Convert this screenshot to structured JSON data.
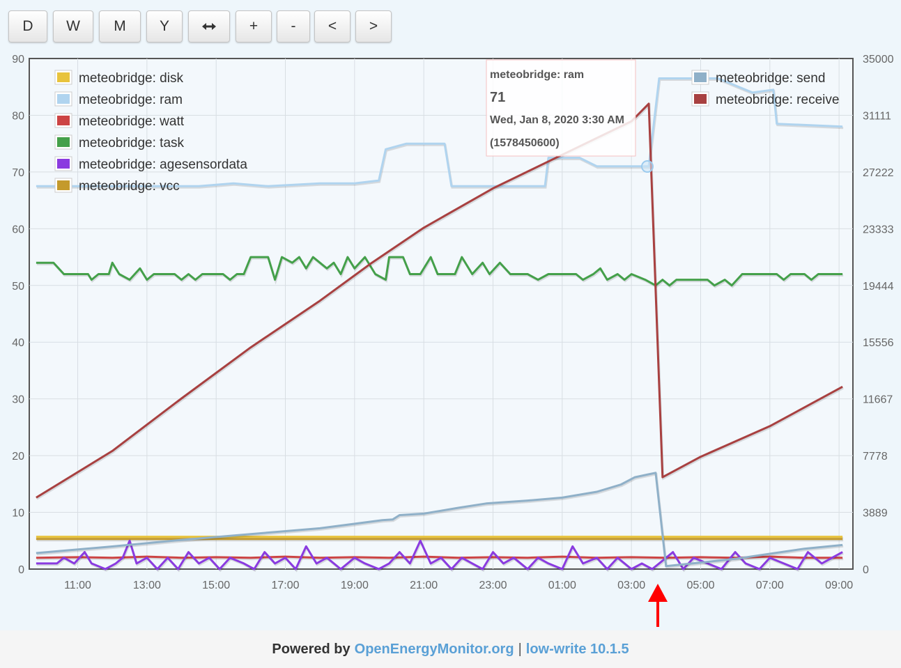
{
  "toolbar": {
    "buttons": [
      {
        "id": "day",
        "label": "D",
        "icon": ""
      },
      {
        "id": "week",
        "label": "W",
        "icon": ""
      },
      {
        "id": "month",
        "label": "M",
        "icon": ""
      },
      {
        "id": "year",
        "label": "Y",
        "icon": ""
      },
      {
        "id": "fit",
        "label": "",
        "icon": "horizontal-arrows-icon"
      },
      {
        "id": "zoom-in",
        "label": "+",
        "icon": ""
      },
      {
        "id": "zoom-out",
        "label": "-",
        "icon": ""
      },
      {
        "id": "pan-left",
        "label": "<",
        "icon": ""
      },
      {
        "id": "pan-right",
        "label": ">",
        "icon": ""
      }
    ]
  },
  "tooltip": {
    "series": "meteobridge: ram",
    "value": "71",
    "time": "Wed, Jan 8, 2020 3:30 AM",
    "timestamp": "(1578450600)"
  },
  "footer": {
    "powered_by": "Powered by",
    "link1": "OpenEnergyMonitor.org",
    "separator": "|",
    "link2": "low-write 10.1.5"
  },
  "annotation": {
    "type": "arrow",
    "color": "#ff0000"
  },
  "chart_data": {
    "type": "line",
    "x_tick_labels": [
      "11:00",
      "13:00",
      "15:00",
      "17:00",
      "19:00",
      "21:00",
      "23:00",
      "01:00",
      "03:00",
      "05:00",
      "07:00",
      "09:00"
    ],
    "x_tick_hours": [
      11,
      13,
      15,
      17,
      19,
      21,
      23,
      25,
      27,
      29,
      31,
      33
    ],
    "x_range_hours": [
      9.6,
      33.4
    ],
    "y_left": {
      "ticks": [
        "0",
        "10",
        "20",
        "30",
        "40",
        "50",
        "60",
        "70",
        "80",
        "90"
      ],
      "range": [
        0,
        90
      ]
    },
    "y_right": {
      "ticks": [
        "0",
        "3889",
        "7778",
        "11667",
        "15556",
        "19444",
        "23333",
        "27222",
        "31111",
        "35000"
      ],
      "range": [
        0,
        35000
      ]
    },
    "grid": true,
    "legend_left_placement": "top-left",
    "legend_right_placement": "top-right",
    "series": [
      {
        "name": "meteobridge: disk",
        "color": "#e8c33c",
        "axis": "left",
        "points": [
          [
            9.8,
            5.7
          ],
          [
            33.1,
            5.7
          ]
        ]
      },
      {
        "name": "meteobridge: ram",
        "color": "#b0d4ef",
        "axis": "left",
        "points": [
          [
            9.8,
            67.5
          ],
          [
            12.5,
            67.5
          ],
          [
            13.0,
            67.5
          ],
          [
            14.5,
            67.5
          ],
          [
            15.5,
            68
          ],
          [
            16.5,
            67.5
          ],
          [
            18.0,
            68
          ],
          [
            19.0,
            68
          ],
          [
            19.7,
            68.5
          ],
          [
            19.9,
            74
          ],
          [
            20.5,
            75
          ],
          [
            21.6,
            75
          ],
          [
            21.8,
            67.5
          ],
          [
            24.5,
            67.5
          ],
          [
            24.6,
            72.5
          ],
          [
            25.5,
            72.5
          ],
          [
            26.0,
            71
          ],
          [
            27.4,
            71
          ],
          [
            27.5,
            71
          ],
          [
            27.8,
            86.5
          ],
          [
            29.5,
            86.5
          ],
          [
            30.5,
            84
          ],
          [
            31.1,
            84.5
          ],
          [
            31.2,
            78.5
          ],
          [
            33.1,
            78
          ]
        ]
      },
      {
        "name": "meteobridge: watt",
        "color": "#cc4444",
        "axis": "left",
        "points": [
          [
            9.8,
            2.0
          ],
          [
            11,
            2.1
          ],
          [
            12,
            2.0
          ],
          [
            13,
            2.2
          ],
          [
            14,
            2.0
          ],
          [
            15,
            2.1
          ],
          [
            16,
            2.0
          ],
          [
            17,
            2.2
          ],
          [
            18,
            2.0
          ],
          [
            19,
            2.1
          ],
          [
            20,
            2.0
          ],
          [
            21,
            2.2
          ],
          [
            22,
            2.0
          ],
          [
            23,
            2.1
          ],
          [
            24,
            2.0
          ],
          [
            25,
            2.2
          ],
          [
            26,
            2.0
          ],
          [
            27,
            2.1
          ],
          [
            28,
            2.0
          ],
          [
            29,
            2.1
          ],
          [
            30,
            2.0
          ],
          [
            31,
            2.2
          ],
          [
            32,
            2.0
          ],
          [
            33.1,
            2.0
          ]
        ]
      },
      {
        "name": "meteobridge: task",
        "color": "#44a04a",
        "axis": "left",
        "points": [
          [
            9.8,
            54
          ],
          [
            10.3,
            54
          ],
          [
            10.6,
            52
          ],
          [
            11.0,
            52
          ],
          [
            11.3,
            52
          ],
          [
            11.4,
            51
          ],
          [
            11.6,
            52
          ],
          [
            11.9,
            52
          ],
          [
            12.0,
            54
          ],
          [
            12.2,
            52
          ],
          [
            12.5,
            51
          ],
          [
            12.8,
            53
          ],
          [
            13.0,
            51
          ],
          [
            13.2,
            52
          ],
          [
            13.8,
            52
          ],
          [
            14.0,
            51
          ],
          [
            14.2,
            52
          ],
          [
            14.4,
            51
          ],
          [
            14.6,
            52
          ],
          [
            15.2,
            52
          ],
          [
            15.4,
            51
          ],
          [
            15.6,
            52
          ],
          [
            15.8,
            52
          ],
          [
            16.0,
            55
          ],
          [
            16.5,
            55
          ],
          [
            16.7,
            51
          ],
          [
            16.9,
            55
          ],
          [
            17.2,
            54
          ],
          [
            17.4,
            55
          ],
          [
            17.6,
            53
          ],
          [
            17.8,
            55
          ],
          [
            18.2,
            53
          ],
          [
            18.4,
            54
          ],
          [
            18.6,
            52
          ],
          [
            18.8,
            55
          ],
          [
            19.0,
            53
          ],
          [
            19.3,
            55
          ],
          [
            19.6,
            52
          ],
          [
            19.9,
            51
          ],
          [
            20.0,
            55
          ],
          [
            20.4,
            55
          ],
          [
            20.6,
            52
          ],
          [
            20.9,
            52
          ],
          [
            21.2,
            55
          ],
          [
            21.4,
            52
          ],
          [
            21.9,
            52
          ],
          [
            22.1,
            55
          ],
          [
            22.4,
            52
          ],
          [
            22.7,
            54
          ],
          [
            22.9,
            52
          ],
          [
            23.2,
            54
          ],
          [
            23.5,
            52
          ],
          [
            24.0,
            52
          ],
          [
            24.3,
            51
          ],
          [
            24.6,
            52
          ],
          [
            25.4,
            52
          ],
          [
            25.6,
            51
          ],
          [
            25.9,
            52
          ],
          [
            26.1,
            53
          ],
          [
            26.3,
            51
          ],
          [
            26.6,
            52
          ],
          [
            26.8,
            51
          ],
          [
            27.0,
            52
          ],
          [
            27.4,
            51
          ],
          [
            27.7,
            50
          ],
          [
            27.9,
            51
          ],
          [
            28.1,
            50
          ],
          [
            28.3,
            51
          ],
          [
            29.2,
            51
          ],
          [
            29.4,
            50
          ],
          [
            29.7,
            51
          ],
          [
            29.9,
            50
          ],
          [
            30.2,
            52
          ],
          [
            31.2,
            52
          ],
          [
            31.4,
            51
          ],
          [
            31.6,
            52
          ],
          [
            32.0,
            52
          ],
          [
            32.2,
            51
          ],
          [
            32.4,
            52
          ],
          [
            33.1,
            52
          ]
        ]
      },
      {
        "name": "meteobridge: agesensordata",
        "color": "#8a3be0",
        "axis": "left",
        "points": [
          [
            9.8,
            1
          ],
          [
            10.4,
            1
          ],
          [
            10.6,
            2
          ],
          [
            10.9,
            1
          ],
          [
            11.2,
            3
          ],
          [
            11.4,
            1
          ],
          [
            11.8,
            0
          ],
          [
            12.1,
            1
          ],
          [
            12.3,
            2
          ],
          [
            12.5,
            5
          ],
          [
            12.7,
            1
          ],
          [
            13.0,
            2
          ],
          [
            13.3,
            0
          ],
          [
            13.6,
            2
          ],
          [
            13.9,
            0
          ],
          [
            14.2,
            3
          ],
          [
            14.5,
            1
          ],
          [
            14.8,
            2
          ],
          [
            15.1,
            0
          ],
          [
            15.4,
            2
          ],
          [
            15.8,
            1
          ],
          [
            16.1,
            0
          ],
          [
            16.4,
            3
          ],
          [
            16.7,
            1
          ],
          [
            17.0,
            2
          ],
          [
            17.3,
            0
          ],
          [
            17.6,
            4
          ],
          [
            17.9,
            1
          ],
          [
            18.2,
            2
          ],
          [
            18.6,
            0
          ],
          [
            19.0,
            2
          ],
          [
            19.3,
            1
          ],
          [
            19.7,
            0
          ],
          [
            20.0,
            1
          ],
          [
            20.3,
            3
          ],
          [
            20.6,
            1
          ],
          [
            20.9,
            5
          ],
          [
            21.2,
            1
          ],
          [
            21.5,
            2
          ],
          [
            21.8,
            0
          ],
          [
            22.1,
            2
          ],
          [
            22.4,
            1
          ],
          [
            22.7,
            0
          ],
          [
            23.0,
            3
          ],
          [
            23.3,
            1
          ],
          [
            23.6,
            2
          ],
          [
            24.0,
            0
          ],
          [
            24.3,
            2
          ],
          [
            24.6,
            1
          ],
          [
            25.0,
            0
          ],
          [
            25.3,
            4
          ],
          [
            25.6,
            1
          ],
          [
            26.0,
            2
          ],
          [
            26.3,
            0
          ],
          [
            26.6,
            2
          ],
          [
            27.0,
            0
          ],
          [
            27.3,
            1
          ],
          [
            27.6,
            0
          ],
          [
            27.8,
            1
          ],
          [
            28.2,
            3
          ],
          [
            28.5,
            0
          ],
          [
            28.8,
            2
          ],
          [
            29.2,
            1
          ],
          [
            29.6,
            0
          ],
          [
            30.0,
            3
          ],
          [
            30.3,
            1
          ],
          [
            30.7,
            0
          ],
          [
            31.0,
            2
          ],
          [
            31.4,
            1
          ],
          [
            31.8,
            0
          ],
          [
            32.1,
            3
          ],
          [
            32.5,
            1
          ],
          [
            32.8,
            2
          ],
          [
            33.1,
            3
          ]
        ]
      },
      {
        "name": "meteobridge: vcc",
        "color": "#c49a2c",
        "axis": "left",
        "points": [
          [
            9.8,
            5.3
          ],
          [
            33.1,
            5.3
          ]
        ]
      },
      {
        "name": "meteobridge: send",
        "color": "#8fb0c8",
        "axis": "right",
        "points": [
          [
            9.8,
            1100
          ],
          [
            12,
            1550
          ],
          [
            14,
            2000
          ],
          [
            16,
            2400
          ],
          [
            18,
            2800
          ],
          [
            19.8,
            3350
          ],
          [
            20.1,
            3400
          ],
          [
            20.3,
            3700
          ],
          [
            21,
            3800
          ],
          [
            21.5,
            4000
          ],
          [
            22,
            4200
          ],
          [
            22.8,
            4500
          ],
          [
            24,
            4700
          ],
          [
            25,
            4900
          ],
          [
            26,
            5300
          ],
          [
            26.7,
            5800
          ],
          [
            27.1,
            6300
          ],
          [
            27.5,
            6500
          ],
          [
            27.7,
            6600
          ],
          [
            28.0,
            200
          ],
          [
            29,
            450
          ],
          [
            30,
            700
          ],
          [
            31,
            1050
          ],
          [
            32,
            1400
          ],
          [
            33.1,
            1650
          ]
        ]
      },
      {
        "name": "meteobridge: receive",
        "color": "#a84040",
        "axis": "right",
        "points": [
          [
            9.8,
            4900
          ],
          [
            12,
            8100
          ],
          [
            14,
            11700
          ],
          [
            16,
            15200
          ],
          [
            18,
            18400
          ],
          [
            19.5,
            21000
          ],
          [
            21,
            23400
          ],
          [
            23,
            26100
          ],
          [
            25,
            28400
          ],
          [
            27,
            30700
          ],
          [
            27.5,
            31900
          ],
          [
            27.9,
            6300
          ],
          [
            29,
            7700
          ],
          [
            31,
            9800
          ],
          [
            33.1,
            12500
          ]
        ]
      }
    ]
  }
}
